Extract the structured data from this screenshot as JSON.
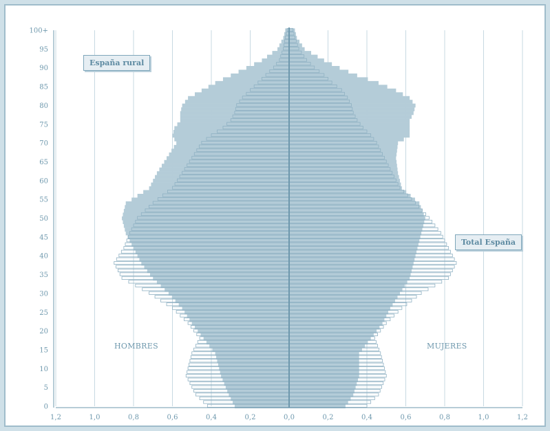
{
  "chart_data": {
    "type": "population-pyramid",
    "title": "",
    "xlabel": "",
    "ylabel": "",
    "xlim": [
      -1.2,
      1.2
    ],
    "x_tick_labels": [
      "1,2",
      "1,0",
      "0,8",
      "0,6",
      "0,4",
      "0,2",
      "0,0",
      "0,2",
      "0,4",
      "0,6",
      "0,8",
      "1,0",
      "1,2"
    ],
    "y_tick_labels": [
      "0",
      "5",
      "10",
      "15",
      "20",
      "25",
      "30",
      "35",
      "40",
      "45",
      "50",
      "55",
      "60",
      "65",
      "70",
      "75",
      "80",
      "85",
      "90",
      "95",
      "100+"
    ],
    "side_labels": {
      "left": "HOMBRES",
      "right": "MUJERES"
    },
    "grid": "vertical",
    "colors": {
      "rural_fill": "#b4ccd8",
      "total_outline": "#8fb1c3",
      "axis": "#6e98ad",
      "grid": "#c7d9e2",
      "center_line": "#6e98ad"
    },
    "series": [
      {
        "name": "España rural",
        "style": "filled",
        "knots": {
          "ages": [
            0,
            3,
            8,
            14,
            18,
            22,
            26,
            30,
            34,
            38,
            42,
            46,
            50,
            54,
            58,
            62,
            66,
            70,
            72,
            74,
            76,
            78,
            80,
            82,
            84,
            86,
            88,
            90,
            92,
            95,
            98,
            100
          ],
          "hombres": [
            0.28,
            0.31,
            0.35,
            0.38,
            0.44,
            0.5,
            0.55,
            0.62,
            0.7,
            0.76,
            0.8,
            0.84,
            0.86,
            0.84,
            0.72,
            0.68,
            0.63,
            0.58,
            0.6,
            0.59,
            0.56,
            0.56,
            0.55,
            0.52,
            0.45,
            0.38,
            0.3,
            0.22,
            0.14,
            0.06,
            0.03,
            0.02
          ],
          "mujeres": [
            0.29,
            0.33,
            0.36,
            0.36,
            0.42,
            0.48,
            0.52,
            0.57,
            0.62,
            0.64,
            0.66,
            0.68,
            0.7,
            0.67,
            0.58,
            0.56,
            0.55,
            0.56,
            0.62,
            0.62,
            0.62,
            0.64,
            0.65,
            0.62,
            0.55,
            0.46,
            0.35,
            0.26,
            0.18,
            0.08,
            0.04,
            0.03
          ]
        }
      },
      {
        "name": "Total España",
        "style": "outline",
        "knots": {
          "ages": [
            0,
            3,
            8,
            14,
            18,
            22,
            26,
            30,
            34,
            38,
            42,
            46,
            50,
            54,
            58,
            62,
            66,
            70,
            72,
            74,
            76,
            78,
            80,
            82,
            84,
            86,
            88,
            90,
            92,
            95,
            98,
            100
          ],
          "hombres": [
            0.42,
            0.48,
            0.53,
            0.5,
            0.46,
            0.52,
            0.6,
            0.72,
            0.86,
            0.9,
            0.85,
            0.82,
            0.78,
            0.7,
            0.6,
            0.55,
            0.5,
            0.45,
            0.4,
            0.34,
            0.3,
            0.28,
            0.27,
            0.24,
            0.2,
            0.16,
            0.12,
            0.08,
            0.05,
            0.03,
            0.02,
            0.01
          ],
          "mujeres": [
            0.4,
            0.46,
            0.5,
            0.47,
            0.44,
            0.5,
            0.58,
            0.68,
            0.82,
            0.86,
            0.82,
            0.78,
            0.72,
            0.65,
            0.57,
            0.53,
            0.49,
            0.45,
            0.42,
            0.38,
            0.35,
            0.33,
            0.32,
            0.3,
            0.27,
            0.22,
            0.18,
            0.13,
            0.09,
            0.05,
            0.03,
            0.02
          ]
        }
      }
    ]
  }
}
